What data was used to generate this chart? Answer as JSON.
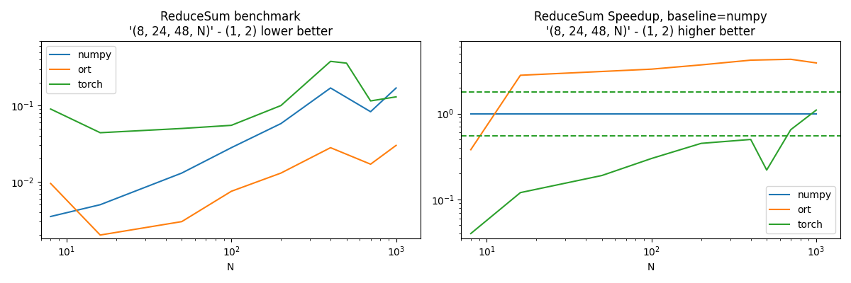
{
  "title1": "ReduceSum benchmark\n'(8, 24, 48, N)' - (1, 2) lower better",
  "title2": "ReduceSum Speedup, baseline=numpy\n'(8, 24, 48, N)' - (1, 2) higher better",
  "xlabel": "N",
  "bench_x_numpy": [
    8,
    16,
    50,
    100,
    200,
    400,
    700,
    1000
  ],
  "bench_numpy": [
    0.0035,
    0.005,
    0.013,
    0.028,
    0.058,
    0.17,
    0.083,
    0.17
  ],
  "bench_x_ort": [
    8,
    16,
    50,
    100,
    200,
    400,
    700,
    1000
  ],
  "bench_ort": [
    0.0095,
    0.002,
    0.003,
    0.0075,
    0.013,
    0.028,
    0.017,
    0.03
  ],
  "bench_x_torch": [
    8,
    16,
    50,
    100,
    200,
    400,
    500,
    700,
    1000
  ],
  "bench_torch": [
    0.09,
    0.044,
    0.05,
    0.055,
    0.1,
    0.38,
    0.36,
    0.115,
    0.13
  ],
  "speedup_x_numpy": [
    8,
    16,
    50,
    100,
    200,
    400,
    700,
    1000
  ],
  "speedup_numpy": [
    1.0,
    1.0,
    1.0,
    1.0,
    1.0,
    1.0,
    1.0,
    1.0
  ],
  "speedup_x_ort": [
    8,
    16,
    50,
    100,
    200,
    400,
    700,
    1000
  ],
  "speedup_ort": [
    0.38,
    2.8,
    3.1,
    3.3,
    3.7,
    4.2,
    4.3,
    3.9
  ],
  "speedup_x_torch": [
    8,
    16,
    50,
    100,
    200,
    400,
    500,
    700,
    1000
  ],
  "speedup_torch": [
    0.04,
    0.12,
    0.19,
    0.3,
    0.45,
    0.5,
    0.22,
    0.65,
    1.1
  ],
  "color_numpy": "#1f77b4",
  "color_ort": "#ff7f0e",
  "color_torch": "#2ca02c",
  "dashed_upper": 1.8,
  "dashed_lower": 0.55,
  "bench_ylim": [
    0.0018,
    0.7
  ],
  "speedup_ylim": [
    0.035,
    7.0
  ],
  "xlim": [
    7,
    1400
  ]
}
